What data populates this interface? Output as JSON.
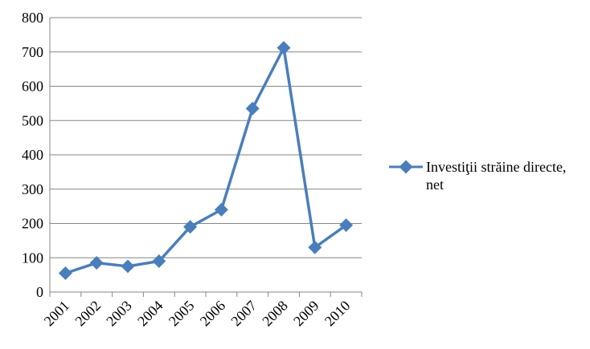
{
  "chart_data": {
    "type": "line",
    "title": "",
    "xlabel": "",
    "ylabel": "",
    "categories": [
      "2001",
      "2002",
      "2003",
      "2004",
      "2005",
      "2006",
      "2007",
      "2008",
      "2009",
      "2010"
    ],
    "series": [
      {
        "name": "Investiţii străine directe, net",
        "values": [
          55,
          85,
          75,
          90,
          190,
          240,
          535,
          712,
          130,
          195
        ],
        "color": "#4a7ebb",
        "marker": "diamond"
      }
    ],
    "ylim": [
      0,
      800
    ],
    "yticks": [
      "0",
      "100",
      "200",
      "300",
      "400",
      "500",
      "600",
      "700",
      "800"
    ],
    "grid": true,
    "legend": {
      "position": "right",
      "lines": [
        "Investiţii străine directe,",
        "net"
      ]
    }
  }
}
